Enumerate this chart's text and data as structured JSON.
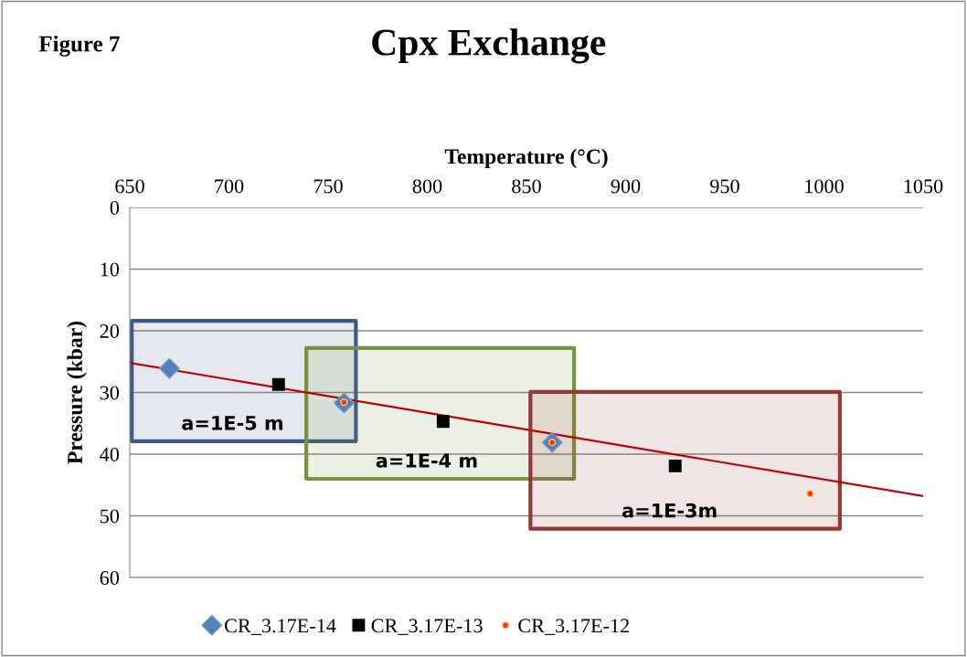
{
  "chart_data": {
    "type": "scatter",
    "title": "Cpx Exchange",
    "xlabel": "Temperature (°C)",
    "ylabel": "Pressure (kbar)",
    "xlim": [
      650,
      1050
    ],
    "xticks": [
      650,
      700,
      750,
      800,
      850,
      900,
      950,
      1000,
      1050
    ],
    "ylim": [
      60,
      0
    ],
    "yticks": [
      0,
      10,
      20,
      30,
      40,
      50,
      60
    ],
    "grid": "y",
    "legend": "bottom",
    "series": [
      {
        "type": "area",
        "color": "#3b5a8a",
        "x": [
          651,
          764,
          764,
          651,
          651
        ],
        "values": [
          18.4,
          18.4,
          37.9,
          37.9,
          18.4
        ]
      },
      {
        "type": "area",
        "color": "#77933c",
        "x": [
          739,
          874,
          874,
          739,
          739
        ],
        "values": [
          22.8,
          22.8,
          44,
          44,
          22.8
        ]
      },
      {
        "type": "area",
        "color": "#953735",
        "x": [
          852,
          1008,
          1008,
          852,
          852
        ],
        "values": [
          29.9,
          29.9,
          52.1,
          52.1,
          29.9
        ]
      },
      {
        "type": "line",
        "color": "#c00000",
        "x": [
          650,
          1050
        ],
        "values": [
          25.2,
          46.8
        ]
      },
      {
        "name": "CR_3.17E-14",
        "color": "#4f81bd",
        "marker": "diamond",
        "x": [
          670,
          758,
          863
        ],
        "values": [
          26.1,
          31.7,
          38.1
        ]
      },
      {
        "name": "CR_3.17E-13",
        "color": "#000000",
        "marker": "square",
        "x": [
          725,
          808,
          925
        ],
        "values": [
          28.7,
          34.7,
          41.9
        ]
      },
      {
        "name": "CR_3.17E-12",
        "color": "#ff3300",
        "marker": "circle",
        "x": [
          758,
          863,
          993
        ],
        "values": [
          31.6,
          38.1,
          46.4
        ]
      }
    ],
    "annotations": [
      "Figure 7",
      "a=1E-5 m",
      "a=1E-4 m",
      "a=1E-3m"
    ]
  }
}
